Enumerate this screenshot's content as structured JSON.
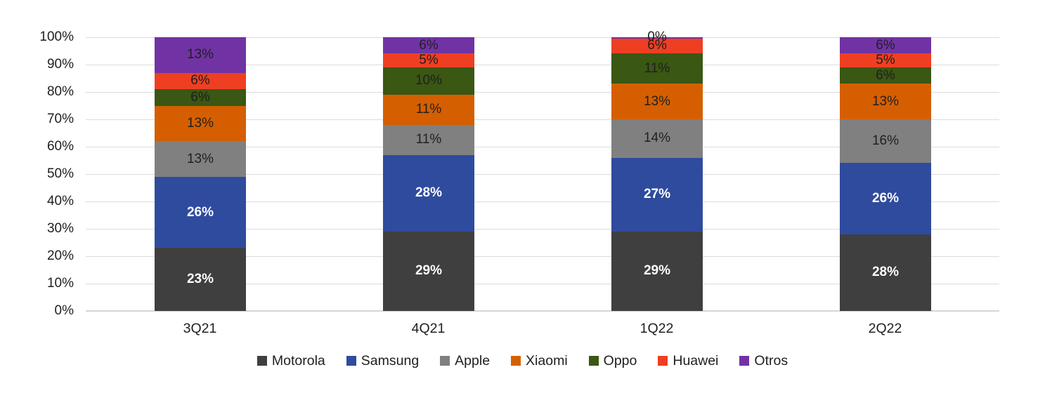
{
  "chart_data": {
    "type": "bar",
    "variant": "100-percent-stacked-column",
    "title": "",
    "categories": [
      "3Q21",
      "4Q21",
      "1Q22",
      "2Q22"
    ],
    "series": [
      {
        "name": "Motorola",
        "color": "#3F3F3F",
        "label_color": "#FFFFFF",
        "label_bold": true,
        "values": [
          23,
          29,
          29,
          28
        ]
      },
      {
        "name": "Samsung",
        "color": "#2F4B9E",
        "label_color": "#FFFFFF",
        "label_bold": true,
        "values": [
          26,
          28,
          27,
          26
        ]
      },
      {
        "name": "Apple",
        "color": "#808080",
        "label_color": "#1F1F1F",
        "label_bold": false,
        "values": [
          13,
          11,
          14,
          16
        ]
      },
      {
        "name": "Xiaomi",
        "color": "#D55F00",
        "label_color": "#1F1F1F",
        "label_bold": false,
        "values": [
          13,
          11,
          13,
          13
        ]
      },
      {
        "name": "Oppo",
        "color": "#3A5713",
        "label_color": "#1F1F1F",
        "label_bold": false,
        "values": [
          6,
          10,
          11,
          6
        ]
      },
      {
        "name": "Huawei",
        "color": "#EE3F23",
        "label_color": "#1F1F1F",
        "label_bold": false,
        "values": [
          6,
          5,
          6,
          5
        ]
      },
      {
        "name": "Otros",
        "color": "#7133A4",
        "label_color": "#1F1F1F",
        "label_bold": false,
        "values": [
          13,
          6,
          0,
          6
        ]
      }
    ],
    "ylim": [
      0,
      100
    ],
    "ytick_step": 10,
    "ytick_labels": [
      "0%",
      "10%",
      "20%",
      "30%",
      "40%",
      "50%",
      "60%",
      "70%",
      "80%",
      "90%",
      "100%"
    ],
    "xtick_labels": [
      "3Q21",
      "4Q21",
      "1Q22",
      "2Q22"
    ],
    "grid": "horizontal",
    "legend_position": "bottom",
    "data_label_format": "{value}%"
  },
  "colors": {
    "gridline": "#DCDCDC",
    "axis_line": "#D6D6D6",
    "text": "#1F1F1F",
    "background": "#FFFFFF"
  }
}
